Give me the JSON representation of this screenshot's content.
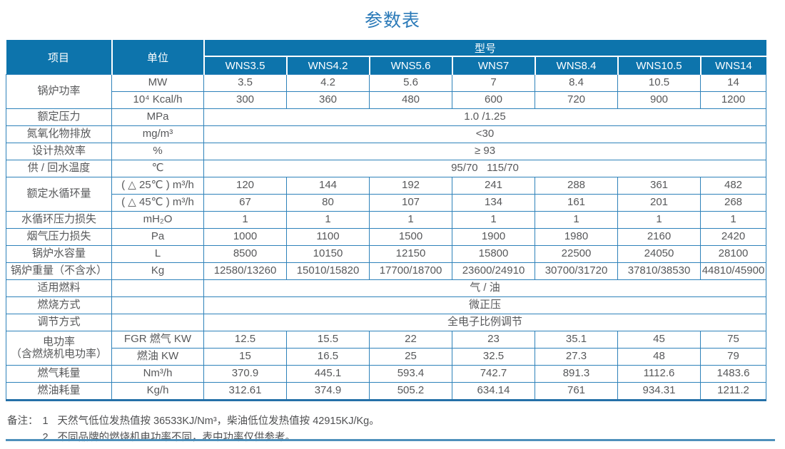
{
  "page_title": "参数表",
  "colors": {
    "header_bg": "#0d74ac",
    "grid_line": "#2e82ba",
    "title_text": "#2b7ab8",
    "body_text": "#57585a",
    "bottom_rule": "#4e90bb"
  },
  "table": {
    "header": {
      "item": "项目",
      "unit": "单位",
      "model_group": "型号",
      "models": [
        "WNS3.5",
        "WNS4.2",
        "WNS5.6",
        "WNS7",
        "WNS8.4",
        "WNS10.5",
        "WNS14"
      ]
    },
    "rows": [
      {
        "label": "锅炉功率",
        "subrows": [
          {
            "unit": "MW",
            "values": [
              "3.5",
              "4.2",
              "5.6",
              "7",
              "8.4",
              "10.5",
              "14"
            ]
          },
          {
            "unit": "10⁴ Kcal/h",
            "values": [
              "300",
              "360",
              "480",
              "600",
              "720",
              "900",
              "1200"
            ]
          }
        ]
      },
      {
        "label": "额定压力",
        "unit": "MPa",
        "span_value": "1.0 /1.25"
      },
      {
        "label": "氮氧化物排放",
        "unit": "mg/m³",
        "span_value": "<30"
      },
      {
        "label": "设计热效率",
        "unit": "%",
        "span_value": "≥ 93"
      },
      {
        "label": "供 / 回水温度",
        "unit": "℃",
        "span_value": "95/70   115/70"
      },
      {
        "label": "额定水循环量",
        "subrows": [
          {
            "unit": "( △ 25℃ ) m³/h",
            "values": [
              "120",
              "144",
              "192",
              "241",
              "288",
              "361",
              "482"
            ]
          },
          {
            "unit": "( △ 45℃ ) m³/h",
            "values": [
              "67",
              "80",
              "107",
              "134",
              "161",
              "201",
              "268"
            ]
          }
        ]
      },
      {
        "label": "水循环压力损失",
        "unit": "mH₂O",
        "values": [
          "1",
          "1",
          "1",
          "1",
          "1",
          "1",
          "1"
        ]
      },
      {
        "label": "烟气压力损失",
        "unit": "Pa",
        "values": [
          "1000",
          "1100",
          "1500",
          "1900",
          "1980",
          "2160",
          "2420"
        ]
      },
      {
        "label": "锅炉水容量",
        "unit": "L",
        "values": [
          "8500",
          "10150",
          "12150",
          "15800",
          "22500",
          "24050",
          "28100"
        ]
      },
      {
        "label": "锅炉重量（不含水）",
        "unit": "Kg",
        "values": [
          "12580/13260",
          "15010/15820",
          "17700/18700",
          "23600/24910",
          "30700/31720",
          "37810/38530",
          "44810/45900"
        ]
      },
      {
        "label": "适用燃料",
        "unit": "",
        "span_value": "气 / 油"
      },
      {
        "label": "燃烧方式",
        "unit": "",
        "span_value": "微正压"
      },
      {
        "label": "调节方式",
        "unit": "",
        "span_value": "全电子比例调节"
      },
      {
        "label": "电功率",
        "label2": "（含燃烧机电功率）",
        "subrows": [
          {
            "unit": "FGR 燃气 KW",
            "values": [
              "12.5",
              "15.5",
              "22",
              "23",
              "35.1",
              "45",
              "75"
            ]
          },
          {
            "unit": "燃油 KW",
            "values": [
              "15",
              "16.5",
              "25",
              "32.5",
              "27.3",
              "48",
              "79"
            ]
          }
        ]
      },
      {
        "label": "燃气耗量",
        "unit": "Nm³/h",
        "values": [
          "370.9",
          "445.1",
          "593.4",
          "742.7",
          "891.3",
          "1112.6",
          "1483.6"
        ]
      },
      {
        "label": "燃油耗量",
        "unit": "Kg/h",
        "values": [
          "312.61",
          "374.9",
          "505.2",
          "634.14",
          "761",
          "934.31",
          "1211.2"
        ]
      }
    ]
  },
  "notes": {
    "label": "备注：",
    "items": [
      {
        "num": "1",
        "text": "天然气低位发热值按 36533KJ/Nm³，柴油低位发热值按 42915KJ/Kg。"
      },
      {
        "num": "2",
        "text": "不同品牌的燃烧机电功率不同，表中功率仅供参考。"
      }
    ]
  }
}
